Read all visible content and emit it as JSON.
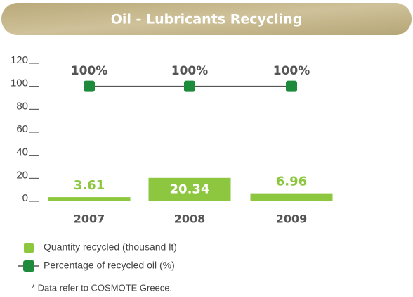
{
  "chart_data": {
    "type": "bar_line",
    "title": "Oil - Lubricants Recycling",
    "categories": [
      "2007",
      "2008",
      "2009"
    ],
    "series": [
      {
        "name": "Quantity recycled (thousand lt)",
        "type": "bar",
        "color": "#8dc63f",
        "values": [
          3.61,
          20.34,
          6.96
        ]
      },
      {
        "name": "Percentage of recycled oil (%)",
        "type": "line",
        "color": "#1e8a3c",
        "values": [
          100,
          100,
          100
        ],
        "value_labels": [
          "100%",
          "100%",
          "100%"
        ]
      }
    ],
    "ylim": [
      0,
      120
    ],
    "yticks": [
      0,
      20,
      40,
      60,
      80,
      100,
      120
    ],
    "footnote": "* Data refer to COSMOTE Greece."
  }
}
